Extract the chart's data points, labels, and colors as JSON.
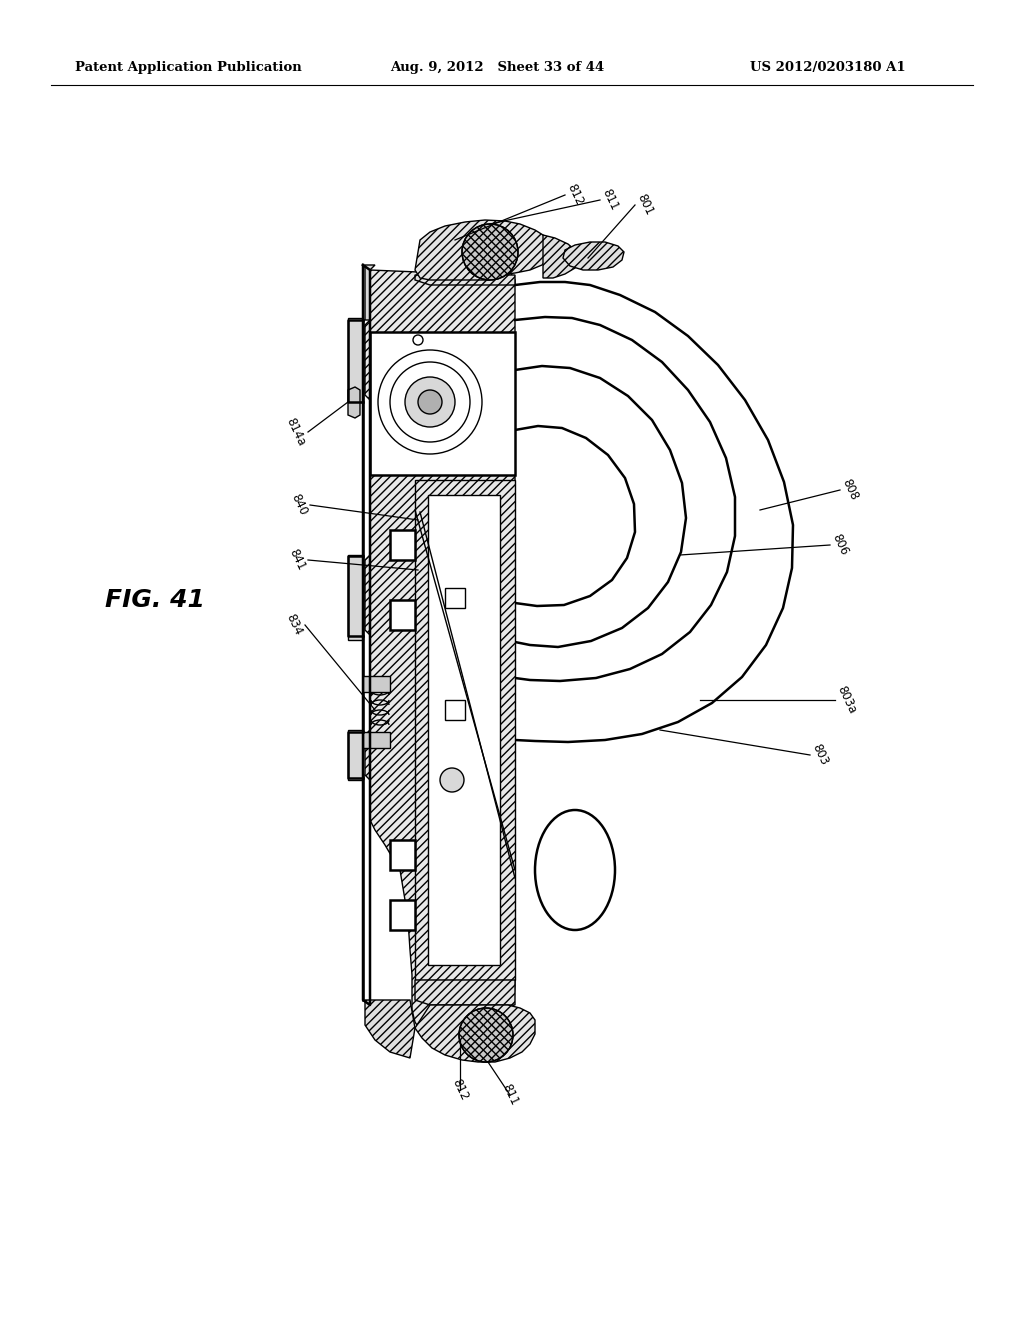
{
  "header_left": "Patent Application Publication",
  "header_center": "Aug. 9, 2012   Sheet 33 of 44",
  "header_right": "US 2012/0203180 A1",
  "fig_label": "FIG. 41",
  "background_color": "#ffffff",
  "line_color": "#000000"
}
